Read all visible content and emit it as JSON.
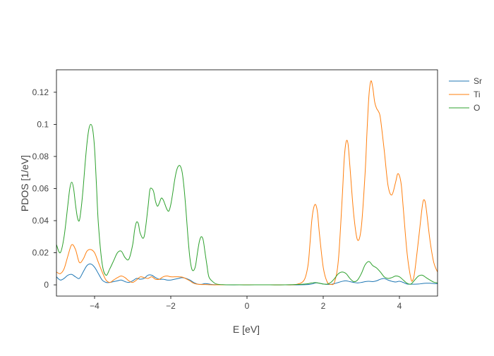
{
  "chart_data": {
    "type": "line",
    "title": "",
    "xlabel": "E [eV]",
    "ylabel": "PDOS [1/eV]",
    "xlim": [
      -5,
      5
    ],
    "ylim": [
      -0.007,
      0.134
    ],
    "x_ticks": [
      -4,
      -2,
      0,
      2,
      4
    ],
    "x_tick_labels": [
      "−4",
      "−2",
      "0",
      "2",
      "4"
    ],
    "y_ticks": [
      0,
      0.02,
      0.04,
      0.06,
      0.08,
      0.1,
      0.12
    ],
    "y_tick_labels": [
      "0",
      "0.02",
      "0.04",
      "0.06",
      "0.08",
      "0.1",
      "0.12"
    ],
    "grid": false,
    "legend_position": "right",
    "series": [
      {
        "name": "Sr",
        "color": "#1f77b4",
        "x": [
          -5,
          -4.9,
          -4.8,
          -4.7,
          -4.6,
          -4.5,
          -4.4,
          -4.3,
          -4.2,
          -4.1,
          -4.0,
          -3.9,
          -3.8,
          -3.7,
          -3.6,
          -3.5,
          -3.4,
          -3.3,
          -3.2,
          -3.1,
          -3.0,
          -2.9,
          -2.8,
          -2.7,
          -2.6,
          -2.5,
          -2.4,
          -2.3,
          -2.2,
          -2.1,
          -2.0,
          -1.9,
          -1.8,
          -1.7,
          -1.6,
          -1.5,
          -1.4,
          -1.3,
          -1.2,
          -1.1,
          -1.0,
          -0.9,
          -0.8,
          -0.6,
          -0.2,
          0.2,
          0.6,
          1.0,
          1.4,
          1.6,
          1.7,
          1.8,
          1.9,
          2.0,
          2.1,
          2.2,
          2.3,
          2.4,
          2.5,
          2.6,
          2.7,
          2.8,
          2.9,
          3.0,
          3.1,
          3.2,
          3.3,
          3.4,
          3.5,
          3.6,
          3.7,
          3.8,
          3.9,
          4.0,
          4.1,
          4.2,
          4.3,
          4.4,
          4.5,
          4.6,
          4.7,
          4.8,
          4.9,
          5.0
        ],
        "values": [
          0.005,
          0.003,
          0.004,
          0.006,
          0.0065,
          0.005,
          0.004,
          0.008,
          0.012,
          0.013,
          0.011,
          0.007,
          0.003,
          0.0015,
          0.0015,
          0.002,
          0.0025,
          0.003,
          0.002,
          0.0015,
          0.0025,
          0.004,
          0.0035,
          0.004,
          0.006,
          0.006,
          0.0045,
          0.0035,
          0.0035,
          0.003,
          0.003,
          0.0035,
          0.004,
          0.0045,
          0.004,
          0.003,
          0.0015,
          0.0005,
          0.0003,
          0.0008,
          0.0005,
          0.0002,
          0.0001,
          0.0,
          0.0,
          0.0,
          0.0,
          0.0,
          0.0,
          0.0002,
          0.0005,
          0.0012,
          0.001,
          0.0005,
          0.0003,
          0.0003,
          0.0008,
          0.0015,
          0.0022,
          0.0025,
          0.002,
          0.0015,
          0.0012,
          0.0015,
          0.002,
          0.0022,
          0.002,
          0.0025,
          0.0035,
          0.004,
          0.003,
          0.0022,
          0.0018,
          0.0022,
          0.0015,
          0.0005,
          0.0004,
          0.0004,
          0.0005,
          0.0008,
          0.001,
          0.001,
          0.0008,
          0.0007
        ]
      },
      {
        "name": "Ti",
        "color": "#ff7f0e",
        "x": [
          -5,
          -4.9,
          -4.8,
          -4.7,
          -4.6,
          -4.5,
          -4.4,
          -4.3,
          -4.2,
          -4.1,
          -4.0,
          -3.9,
          -3.8,
          -3.7,
          -3.6,
          -3.5,
          -3.4,
          -3.3,
          -3.2,
          -3.1,
          -3.0,
          -2.9,
          -2.8,
          -2.7,
          -2.6,
          -2.5,
          -2.4,
          -2.3,
          -2.2,
          -2.1,
          -2.0,
          -1.9,
          -1.8,
          -1.7,
          -1.6,
          -1.5,
          -1.4,
          -1.3,
          -1.2,
          -1.1,
          -1.0,
          -0.9,
          -0.8,
          -0.6,
          -0.2,
          0.2,
          0.6,
          1.0,
          1.3,
          1.5,
          1.6,
          1.65,
          1.7,
          1.75,
          1.8,
          1.85,
          1.9,
          2.0,
          2.1,
          2.2,
          2.3,
          2.4,
          2.5,
          2.55,
          2.6,
          2.65,
          2.7,
          2.8,
          2.9,
          3.0,
          3.1,
          3.15,
          3.2,
          3.25,
          3.3,
          3.35,
          3.4,
          3.45,
          3.5,
          3.6,
          3.7,
          3.8,
          3.9,
          3.95,
          4.0,
          4.05,
          4.1,
          4.2,
          4.3,
          4.35,
          4.4,
          4.5,
          4.6,
          4.65,
          4.7,
          4.8,
          4.9,
          5.0
        ],
        "values": [
          0.008,
          0.007,
          0.01,
          0.018,
          0.025,
          0.022,
          0.014,
          0.016,
          0.021,
          0.022,
          0.02,
          0.014,
          0.008,
          0.003,
          0.0015,
          0.003,
          0.0045,
          0.0055,
          0.0045,
          0.0025,
          0.0015,
          0.003,
          0.005,
          0.0045,
          0.004,
          0.005,
          0.0035,
          0.0035,
          0.005,
          0.0055,
          0.005,
          0.005,
          0.005,
          0.0048,
          0.0038,
          0.0025,
          0.001,
          0.0004,
          0.0002,
          0.0002,
          0.0001,
          0.0,
          0.0,
          0.0,
          0.0,
          0.0,
          0.0,
          0.0,
          0.0003,
          0.003,
          0.012,
          0.025,
          0.04,
          0.048,
          0.05,
          0.045,
          0.032,
          0.011,
          0.002,
          0.0003,
          0.002,
          0.016,
          0.055,
          0.078,
          0.089,
          0.088,
          0.074,
          0.044,
          0.028,
          0.036,
          0.07,
          0.096,
          0.118,
          0.127,
          0.123,
          0.114,
          0.11,
          0.108,
          0.104,
          0.084,
          0.062,
          0.056,
          0.064,
          0.069,
          0.068,
          0.062,
          0.048,
          0.02,
          0.004,
          0.003,
          0.008,
          0.028,
          0.049,
          0.053,
          0.048,
          0.028,
          0.014,
          0.008
        ]
      },
      {
        "name": "O",
        "color": "#2ca02c",
        "x": [
          -5,
          -4.9,
          -4.8,
          -4.7,
          -4.65,
          -4.6,
          -4.55,
          -4.5,
          -4.45,
          -4.4,
          -4.35,
          -4.3,
          -4.25,
          -4.2,
          -4.15,
          -4.1,
          -4.05,
          -4.0,
          -3.95,
          -3.9,
          -3.8,
          -3.7,
          -3.6,
          -3.5,
          -3.4,
          -3.3,
          -3.2,
          -3.1,
          -3.0,
          -2.95,
          -2.9,
          -2.85,
          -2.8,
          -2.7,
          -2.6,
          -2.55,
          -2.5,
          -2.45,
          -2.4,
          -2.35,
          -2.3,
          -2.25,
          -2.2,
          -2.15,
          -2.1,
          -2.05,
          -2.0,
          -1.95,
          -1.9,
          -1.85,
          -1.8,
          -1.75,
          -1.7,
          -1.65,
          -1.6,
          -1.55,
          -1.5,
          -1.45,
          -1.4,
          -1.35,
          -1.3,
          -1.25,
          -1.2,
          -1.15,
          -1.1,
          -1.05,
          -1.0,
          -0.9,
          -0.8,
          -0.6,
          -0.2,
          0.2,
          0.6,
          1.0,
          1.4,
          1.6,
          1.7,
          1.8,
          1.9,
          2.0,
          2.1,
          2.2,
          2.3,
          2.4,
          2.5,
          2.6,
          2.7,
          2.8,
          2.9,
          3.0,
          3.1,
          3.2,
          3.3,
          3.4,
          3.5,
          3.6,
          3.7,
          3.8,
          3.9,
          4.0,
          4.1,
          4.2,
          4.3,
          4.4,
          4.5,
          4.6,
          4.7,
          4.8,
          4.9,
          5.0
        ],
        "values": [
          0.025,
          0.02,
          0.03,
          0.05,
          0.06,
          0.064,
          0.06,
          0.05,
          0.042,
          0.04,
          0.048,
          0.06,
          0.075,
          0.088,
          0.097,
          0.1,
          0.097,
          0.085,
          0.062,
          0.038,
          0.013,
          0.006,
          0.01,
          0.015,
          0.02,
          0.021,
          0.017,
          0.016,
          0.025,
          0.034,
          0.039,
          0.038,
          0.032,
          0.03,
          0.048,
          0.059,
          0.06,
          0.058,
          0.052,
          0.049,
          0.051,
          0.054,
          0.053,
          0.05,
          0.047,
          0.046,
          0.05,
          0.057,
          0.065,
          0.071,
          0.074,
          0.074,
          0.07,
          0.06,
          0.046,
          0.03,
          0.017,
          0.01,
          0.009,
          0.012,
          0.02,
          0.027,
          0.03,
          0.028,
          0.02,
          0.012,
          0.005,
          0.002,
          0.0005,
          0.0001,
          0.0,
          0.0,
          0.0,
          0.0,
          0.0003,
          0.0007,
          0.0012,
          0.0014,
          0.001,
          0.0005,
          0.0004,
          0.0015,
          0.004,
          0.007,
          0.008,
          0.007,
          0.004,
          0.002,
          0.003,
          0.007,
          0.0125,
          0.0145,
          0.012,
          0.0105,
          0.008,
          0.005,
          0.004,
          0.0045,
          0.0055,
          0.005,
          0.003,
          0.001,
          0.0005,
          0.003,
          0.0055,
          0.006,
          0.0045,
          0.003,
          0.0017,
          0.0012
        ]
      }
    ]
  }
}
